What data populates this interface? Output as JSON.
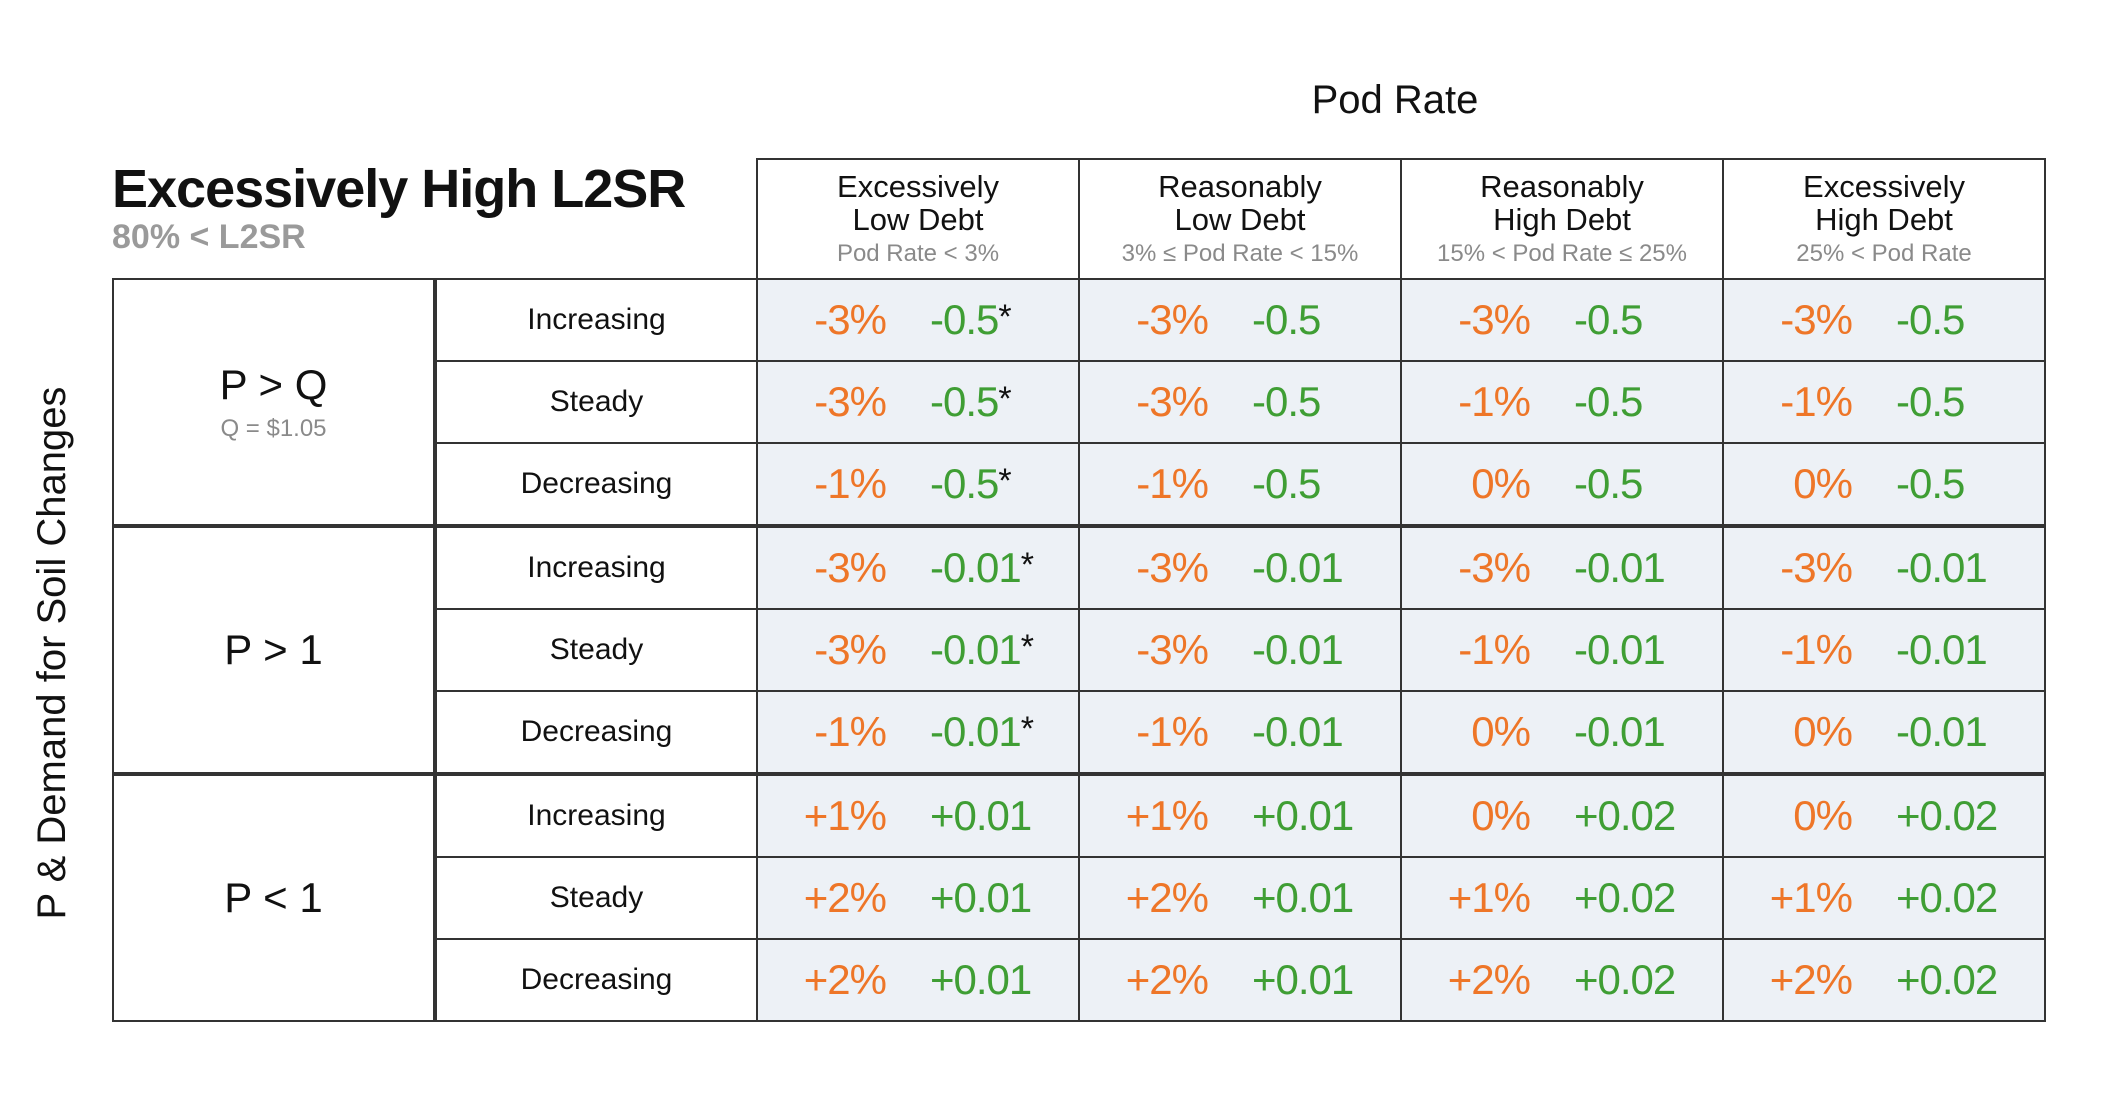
{
  "chart_data": {
    "type": "table",
    "title": "Excessively High L2SR",
    "subtitle": "80% < L2SR",
    "column_axis_title": "Pod Rate",
    "row_axis_title": "P & Demand for Soil Changes",
    "columns": [
      {
        "label": "Excessively\nLow Debt",
        "range": "Pod Rate < 3%"
      },
      {
        "label": "Reasonably\nLow Debt",
        "range": "3% ≤ Pod Rate < 15%"
      },
      {
        "label": "Reasonably\nHigh Debt",
        "range": "15% < Pod Rate ≤ 25%"
      },
      {
        "label": "Excessively\nHigh Debt",
        "range": "25% < Pod Rate"
      }
    ],
    "groups": [
      {
        "label": "P > Q",
        "sublabel": "Q = $1.05",
        "rows": [
          {
            "trend": "Increasing",
            "cells": [
              [
                "-3%",
                "-0.5",
                "*"
              ],
              [
                "-3%",
                "-0.5",
                ""
              ],
              [
                "-3%",
                "-0.5",
                ""
              ],
              [
                "-3%",
                "-0.5",
                ""
              ]
            ]
          },
          {
            "trend": "Steady",
            "cells": [
              [
                "-3%",
                "-0.5",
                "*"
              ],
              [
                "-3%",
                "-0.5",
                ""
              ],
              [
                "-1%",
                "-0.5",
                ""
              ],
              [
                "-1%",
                "-0.5",
                ""
              ]
            ]
          },
          {
            "trend": "Decreasing",
            "cells": [
              [
                "-1%",
                "-0.5",
                "*"
              ],
              [
                "-1%",
                "-0.5",
                ""
              ],
              [
                "0%",
                "-0.5",
                ""
              ],
              [
                "0%",
                "-0.5",
                ""
              ]
            ]
          }
        ]
      },
      {
        "label": "P > 1",
        "sublabel": "",
        "rows": [
          {
            "trend": "Increasing",
            "cells": [
              [
                "-3%",
                "-0.01",
                "*"
              ],
              [
                "-3%",
                "-0.01",
                ""
              ],
              [
                "-3%",
                "-0.01",
                ""
              ],
              [
                "-3%",
                "-0.01",
                ""
              ]
            ]
          },
          {
            "trend": "Steady",
            "cells": [
              [
                "-3%",
                "-0.01",
                "*"
              ],
              [
                "-3%",
                "-0.01",
                ""
              ],
              [
                "-1%",
                "-0.01",
                ""
              ],
              [
                "-1%",
                "-0.01",
                ""
              ]
            ]
          },
          {
            "trend": "Decreasing",
            "cells": [
              [
                "-1%",
                "-0.01",
                "*"
              ],
              [
                "-1%",
                "-0.01",
                ""
              ],
              [
                "0%",
                "-0.01",
                ""
              ],
              [
                "0%",
                "-0.01",
                ""
              ]
            ]
          }
        ]
      },
      {
        "label": "P < 1",
        "sublabel": "",
        "rows": [
          {
            "trend": "Increasing",
            "cells": [
              [
                "+1%",
                "+0.01",
                ""
              ],
              [
                "+1%",
                "+0.01",
                ""
              ],
              [
                "0%",
                "+0.02",
                ""
              ],
              [
                "0%",
                "+0.02",
                ""
              ]
            ]
          },
          {
            "trend": "Steady",
            "cells": [
              [
                "+2%",
                "+0.01",
                ""
              ],
              [
                "+2%",
                "+0.01",
                ""
              ],
              [
                "+1%",
                "+0.02",
                ""
              ],
              [
                "+1%",
                "+0.02",
                ""
              ]
            ]
          },
          {
            "trend": "Decreasing",
            "cells": [
              [
                "+2%",
                "+0.01",
                ""
              ],
              [
                "+2%",
                "+0.01",
                ""
              ],
              [
                "+2%",
                "+0.02",
                ""
              ],
              [
                "+2%",
                "+0.02",
                ""
              ]
            ]
          }
        ]
      }
    ],
    "colors": {
      "negative_pct": "#ee7628",
      "amount": "#3f9e34",
      "cell_bg": "#edf1f6"
    }
  }
}
